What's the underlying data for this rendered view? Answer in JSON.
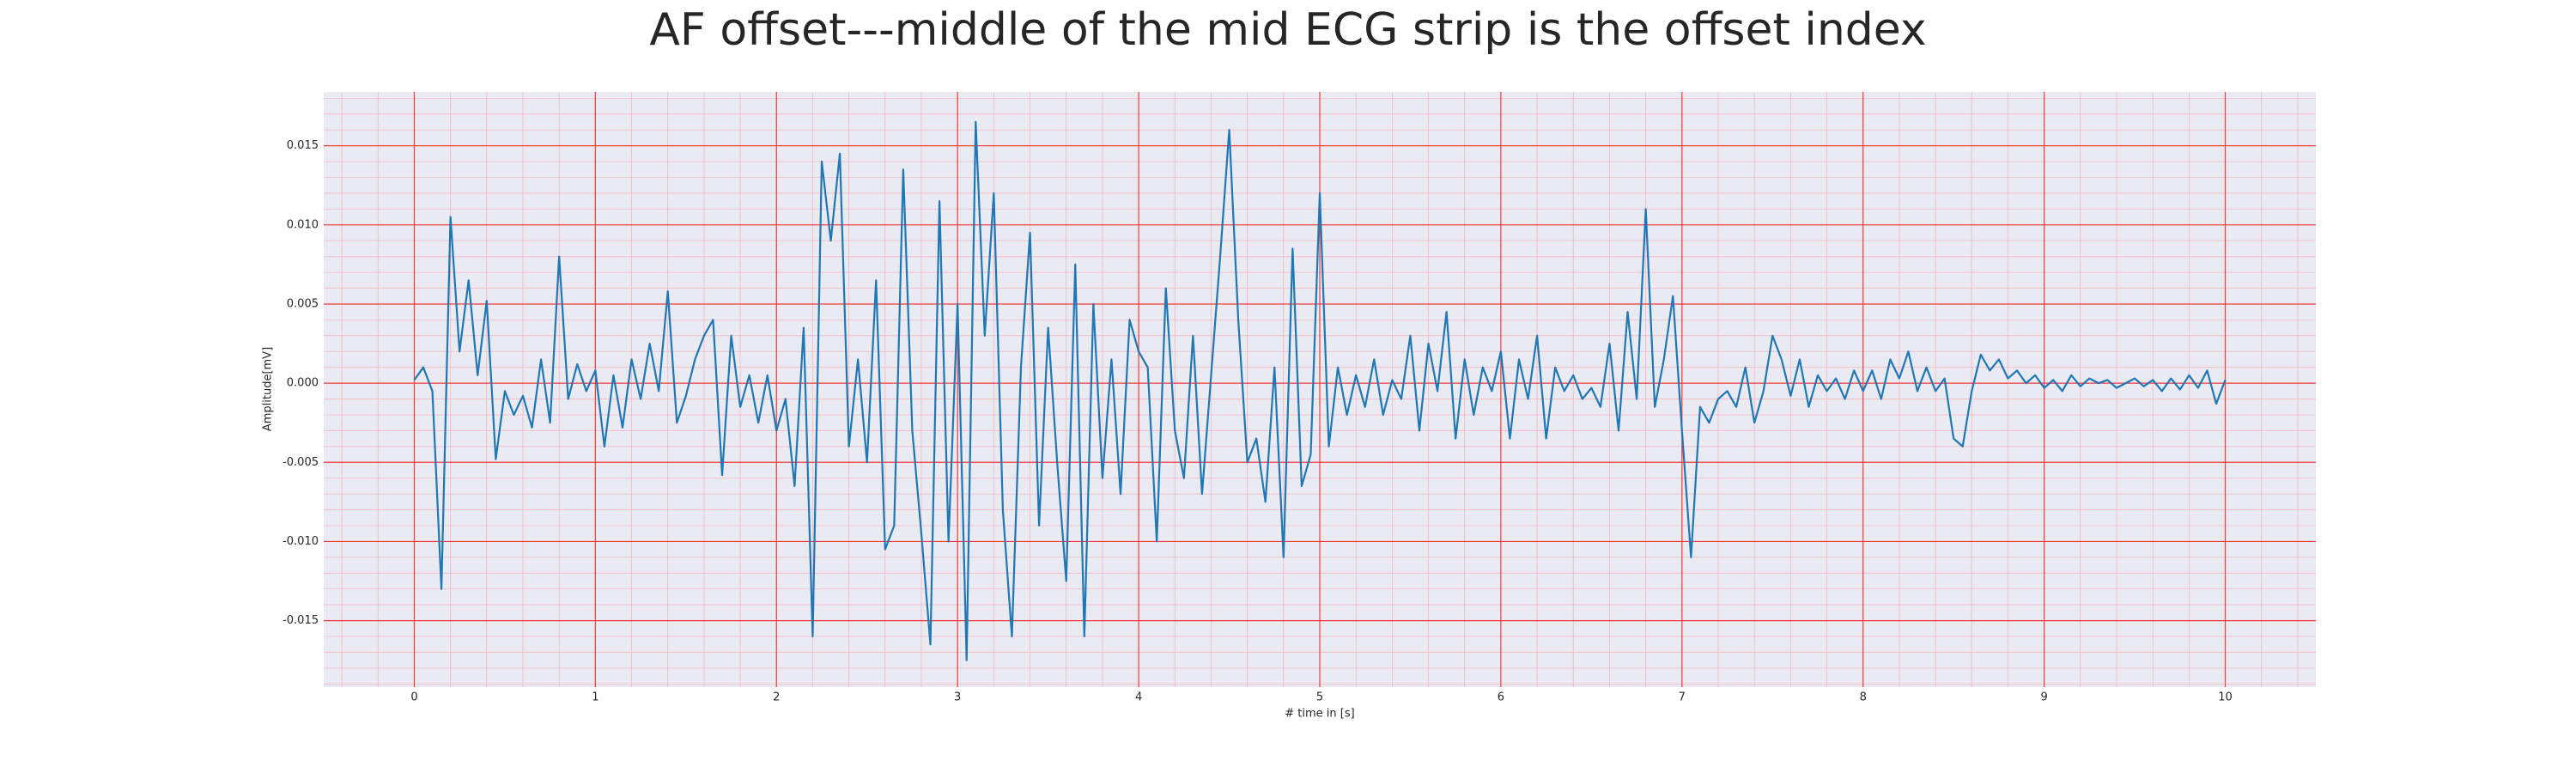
{
  "chart_data": {
    "type": "line",
    "title": "AF offset---middle of the mid ECG strip is the offset index",
    "xlabel": "# time in [s]",
    "ylabel": "Amplitude[mV]",
    "color": "#1f77b4",
    "grid": true,
    "minor_grid": true,
    "grid_color": "#f03c3c",
    "minor_grid_color": "#f4b8c4",
    "background": "#eaeaf2",
    "xlim": [
      -0.5,
      10.5
    ],
    "ylim": [
      -0.0192,
      0.0184
    ],
    "xticks": [
      0,
      1,
      2,
      3,
      4,
      5,
      6,
      7,
      8,
      9,
      10
    ],
    "yticks": [
      {
        "value": -0.015,
        "label": "-0.015"
      },
      {
        "value": -0.01,
        "label": "-0.010"
      },
      {
        "value": -0.005,
        "label": "-0.005"
      },
      {
        "value": 0,
        "label": "0.000"
      },
      {
        "value": 0.005,
        "label": "0.005"
      },
      {
        "value": 0.01,
        "label": "0.010"
      },
      {
        "value": 0.015,
        "label": "0.015"
      }
    ],
    "x": [
      0,
      0.05,
      0.1,
      0.15,
      0.2,
      0.25,
      0.3,
      0.35,
      0.4,
      0.45,
      0.5,
      0.55,
      0.6,
      0.65,
      0.7,
      0.75,
      0.8,
      0.85,
      0.9,
      0.95,
      1,
      1.05,
      1.1,
      1.15,
      1.2,
      1.25,
      1.3,
      1.35,
      1.4,
      1.45,
      1.5,
      1.55,
      1.6,
      1.65,
      1.7,
      1.75,
      1.8,
      1.85,
      1.9,
      1.95,
      2,
      2.05,
      2.1,
      2.15,
      2.2,
      2.25,
      2.3,
      2.35,
      2.4,
      2.45,
      2.5,
      2.55,
      2.6,
      2.65,
      2.7,
      2.75,
      2.8,
      2.85,
      2.9,
      2.95,
      3,
      3.05,
      3.1,
      3.15,
      3.2,
      3.25,
      3.3,
      3.35,
      3.4,
      3.45,
      3.5,
      3.55,
      3.6,
      3.65,
      3.7,
      3.75,
      3.8,
      3.85,
      3.9,
      3.95,
      4,
      4.05,
      4.1,
      4.15,
      4.2,
      4.25,
      4.3,
      4.35,
      4.4,
      4.45,
      4.5,
      4.55,
      4.6,
      4.65,
      4.7,
      4.75,
      4.8,
      4.85,
      4.9,
      4.95,
      5,
      5.05,
      5.1,
      5.15,
      5.2,
      5.25,
      5.3,
      5.35,
      5.4,
      5.45,
      5.5,
      5.55,
      5.6,
      5.65,
      5.7,
      5.75,
      5.8,
      5.85,
      5.9,
      5.95,
      6,
      6.05,
      6.1,
      6.15,
      6.2,
      6.25,
      6.3,
      6.35,
      6.4,
      6.45,
      6.5,
      6.55,
      6.6,
      6.65,
      6.7,
      6.75,
      6.8,
      6.85,
      6.9,
      6.95,
      7,
      7.05,
      7.1,
      7.15,
      7.2,
      7.25,
      7.3,
      7.35,
      7.4,
      7.45,
      7.5,
      7.55,
      7.6,
      7.65,
      7.7,
      7.75,
      7.8,
      7.85,
      7.9,
      7.95,
      8,
      8.05,
      8.1,
      8.15,
      8.2,
      8.25,
      8.3,
      8.35,
      8.4,
      8.45,
      8.5,
      8.55,
      8.6,
      8.65,
      8.7,
      8.75,
      8.8,
      8.85,
      8.9,
      8.95,
      9,
      9.05,
      9.1,
      9.15,
      9.2,
      9.25,
      9.3,
      9.35,
      9.4,
      9.45,
      9.5,
      9.55,
      9.6,
      9.65,
      9.7,
      9.75,
      9.8,
      9.85,
      9.9,
      9.95,
      10
    ],
    "values": [
      0.0002,
      0.001,
      -0.0005,
      -0.013,
      0.0105,
      0.002,
      0.0065,
      0.0005,
      0.0052,
      -0.0048,
      -0.0005,
      -0.002,
      -0.0008,
      -0.0028,
      0.0015,
      -0.0025,
      0.008,
      -0.001,
      0.0012,
      -0.0005,
      0.0008,
      -0.004,
      0.0005,
      -0.0028,
      0.0015,
      -0.001,
      0.0025,
      -0.0005,
      0.0058,
      -0.0025,
      -0.0008,
      0.0015,
      0.003,
      0.004,
      -0.0058,
      0.003,
      -0.0015,
      0.0005,
      -0.0025,
      0.0005,
      -0.003,
      -0.001,
      -0.0065,
      0.0035,
      -0.016,
      0.014,
      0.009,
      0.0145,
      -0.004,
      0.0015,
      -0.005,
      0.0065,
      -0.0105,
      -0.009,
      0.0135,
      -0.003,
      -0.0095,
      -0.0165,
      0.0115,
      -0.01,
      0.005,
      -0.0175,
      0.0165,
      0.003,
      0.012,
      -0.008,
      -0.016,
      0.001,
      0.0095,
      -0.009,
      0.0035,
      -0.005,
      -0.0125,
      0.0075,
      -0.016,
      0.005,
      -0.006,
      0.0015,
      -0.007,
      0.004,
      0.002,
      0.001,
      -0.01,
      0.006,
      -0.003,
      -0.006,
      0.003,
      -0.007,
      0.0005,
      0.008,
      0.016,
      0.004,
      -0.005,
      -0.0035,
      -0.0075,
      0.001,
      -0.011,
      0.0085,
      -0.0065,
      -0.0045,
      0.012,
      -0.004,
      0.001,
      -0.002,
      0.0005,
      -0.0015,
      0.0015,
      -0.002,
      0.0002,
      -0.001,
      0.003,
      -0.003,
      0.0025,
      -0.0005,
      0.0045,
      -0.0035,
      0.0015,
      -0.002,
      0.001,
      -0.0005,
      0.002,
      -0.0035,
      0.0015,
      -0.001,
      0.003,
      -0.0035,
      0.001,
      -0.0005,
      0.0005,
      -0.001,
      -0.0003,
      -0.0015,
      0.0025,
      -0.003,
      0.0045,
      -0.001,
      0.011,
      -0.0015,
      0.0015,
      0.0055,
      -0.003,
      -0.011,
      -0.0015,
      -0.0025,
      -0.001,
      -0.0005,
      -0.0015,
      0.001,
      -0.0025,
      -0.0005,
      0.003,
      0.0015,
      -0.0008,
      0.0015,
      -0.0015,
      0.0005,
      -0.0005,
      0.0003,
      -0.001,
      0.0008,
      -0.0005,
      0.0008,
      -0.001,
      0.0015,
      0.0003,
      0.002,
      -0.0005,
      0.001,
      -0.0005,
      0.0003,
      -0.0035,
      -0.004,
      -0.0005,
      0.0018,
      0.0008,
      0.0015,
      0.0003,
      0.0008,
      0,
      0.0005,
      -0.0003,
      0.0002,
      -0.0005,
      0.0005,
      -0.0002,
      0.0003,
      0,
      0.0002,
      -0.0003,
      0,
      0.0003,
      -0.0002,
      0.0002,
      -0.0005,
      0.0003,
      -0.0004,
      0.0005,
      -0.0003,
      0.0008,
      -0.0013,
      0.0002
    ]
  }
}
